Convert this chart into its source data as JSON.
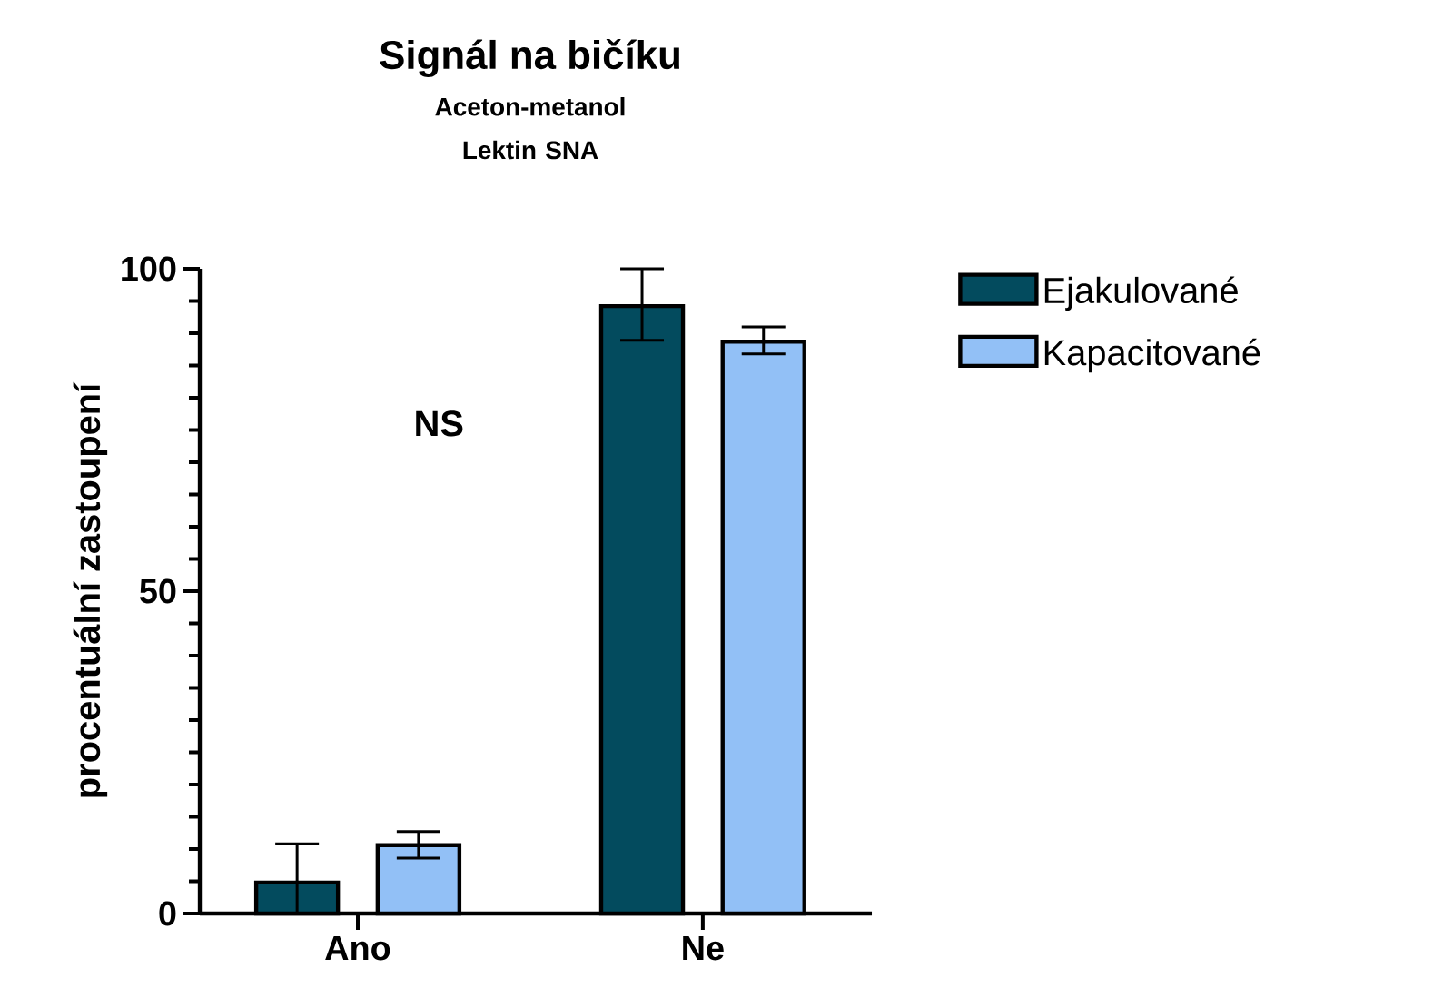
{
  "chart_data": {
    "type": "bar",
    "title": "Signál na bičíku",
    "subtitle": "Aceton-metanol Lektin SNA",
    "ylabel": "procentuální zastoupení",
    "categories": [
      "Ano",
      "Ne"
    ],
    "series": [
      {
        "name": "Ejakulované",
        "color": "#034b5e",
        "values": [
          4.8,
          94.2
        ],
        "errors": [
          [
            0,
            10.8
          ],
          [
            88.9,
            100
          ]
        ]
      },
      {
        "name": "Kapacitované",
        "color": "#92c0f6",
        "values": [
          10.6,
          88.7
        ],
        "errors": [
          [
            8.6,
            12.7
          ],
          [
            86.8,
            91.0
          ]
        ]
      }
    ],
    "ylim": [
      0,
      100
    ],
    "yticks": [
      0,
      50,
      100
    ],
    "grid": false,
    "legend": "top right",
    "annotations": [
      "NS"
    ]
  }
}
